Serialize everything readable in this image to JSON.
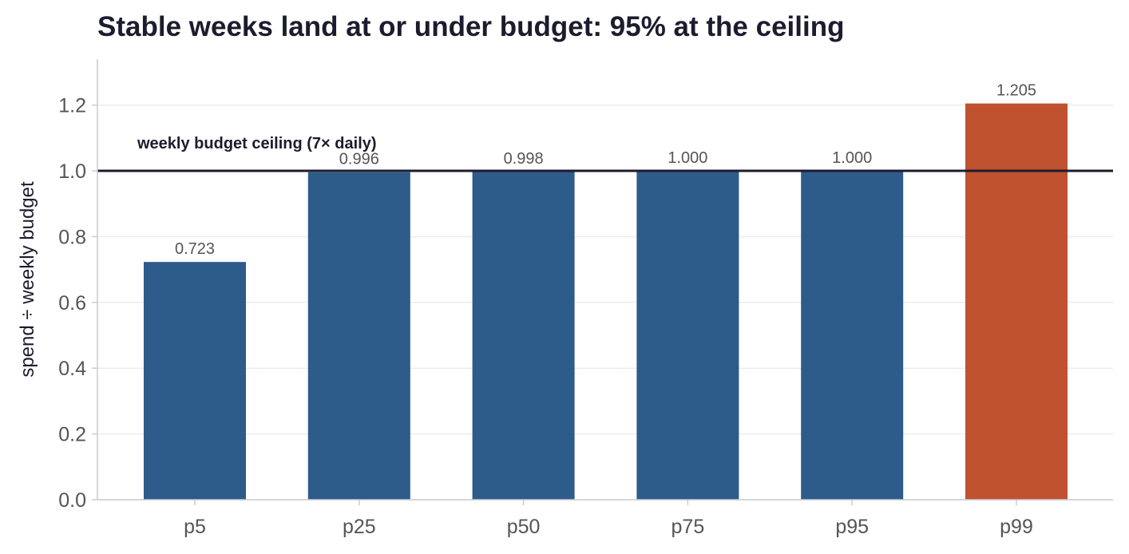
{
  "chart_data": {
    "type": "bar",
    "title": "Stable weeks land at or under budget: 95% at the ceiling",
    "xlabel": "",
    "ylabel": "spend ÷ weekly budget",
    "categories": [
      "p5",
      "p25",
      "p50",
      "p75",
      "p95",
      "p99"
    ],
    "values": [
      0.723,
      0.996,
      0.998,
      1.0,
      1.0,
      1.205
    ],
    "value_labels": [
      "0.723",
      "0.996",
      "0.998",
      "1.000",
      "1.000",
      "1.205"
    ],
    "ylim": [
      0,
      1.34
    ],
    "yticks": [
      0.0,
      0.2,
      0.4,
      0.6,
      0.8,
      1.0,
      1.2
    ],
    "ytick_labels": [
      "0.0",
      "0.2",
      "0.4",
      "0.6",
      "0.8",
      "1.0",
      "1.2"
    ],
    "grid": "horizontal",
    "bar_colors": [
      "#2d5b8a",
      "#2d5b8a",
      "#2d5b8a",
      "#2d5b8a",
      "#2d5b8a",
      "#c05230"
    ],
    "reference_line": {
      "y": 1.0,
      "label": "weekly budget ceiling (7× daily)",
      "color": "#1c1c2e"
    }
  }
}
